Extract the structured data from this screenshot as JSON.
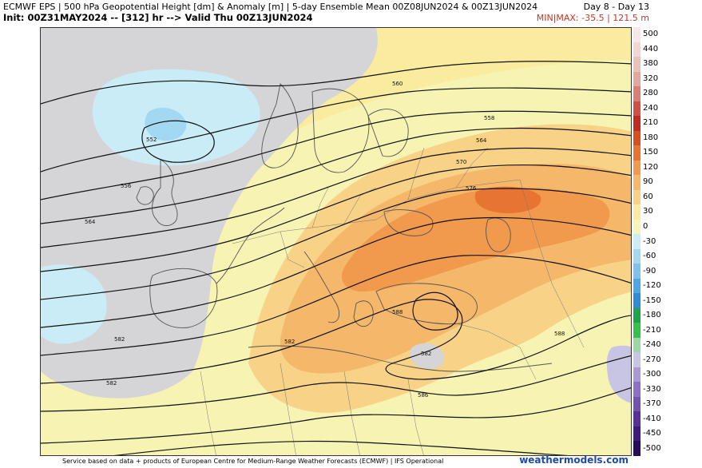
{
  "header": {
    "line1": "ECMWF EPS | 500 hPa Geopotential Height [dm] & Anomaly [m] | 5-day Ensemble Mean 00Z08JUN2024 & 00Z13JUN2024",
    "line2": "Init: 00Z31MAY2024 -- [312] hr --> Valid Thu 00Z13JUN2024",
    "days": "Day 8 - Day 13",
    "minmax": "MIN|MAX: -35.5 | 121.5 m"
  },
  "contour_labels": [
    "552",
    "556",
    "558",
    "560",
    "564",
    "564",
    "570",
    "576",
    "582",
    "582",
    "582",
    "586",
    "588",
    "588",
    "582"
  ],
  "legend": {
    "values": [
      "500",
      "440",
      "380",
      "320",
      "280",
      "240",
      "210",
      "180",
      "150",
      "120",
      "90",
      "60",
      "30",
      "0",
      "-30",
      "-60",
      "-90",
      "-120",
      "-150",
      "-180",
      "-210",
      "-240",
      "-270",
      "-300",
      "-330",
      "-370",
      "-410",
      "-450",
      "-500"
    ],
    "colors": [
      "#f6e8e6",
      "#f1d6d2",
      "#eac2bb",
      "#e2a79d",
      "#d97f74",
      "#cf5247",
      "#c02d20",
      "#d5501e",
      "#e87434",
      "#f19a4e",
      "#f5b86a",
      "#f8d286",
      "#fbeaa4",
      "#f7f5b8",
      "#c9ecf7",
      "#a3d8f2",
      "#7ec2ec",
      "#4da7e2",
      "#2f8bd4",
      "#1ea44a",
      "#36c24a",
      "#9bd7a6",
      "#c8c4e4",
      "#a99ad4",
      "#8c72c2",
      "#7452ad",
      "#5a2f96",
      "#3e1a7a",
      "#2a0a5a"
    ]
  },
  "footer": {
    "credit": "Service based on data + products of European Centre for Medium-Range Weather Forecasts (ECMWF) | IFS Operational",
    "brand": "weathermodels.com"
  }
}
